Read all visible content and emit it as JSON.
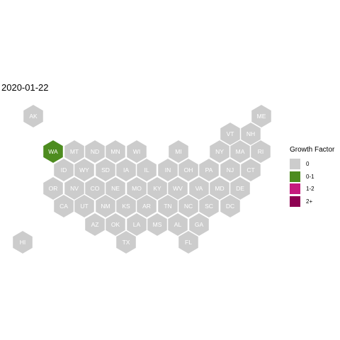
{
  "title": "2020-01-22",
  "colors": {
    "none": "#cccccc",
    "g01": "#4d8c1f",
    "g12": "#c51b7d",
    "g2plus": "#8e0152",
    "stroke": "#ffffff"
  },
  "legend": {
    "title": "Growth Factor",
    "items": [
      {
        "label": "0",
        "color": "#cccccc"
      },
      {
        "label": "0-1",
        "color": "#4d8c1f"
      },
      {
        "label": "1-2",
        "color": "#c51b7d"
      },
      {
        "label": "2+",
        "color": "#8e0152"
      }
    ]
  },
  "states": [
    {
      "abbr": "AK",
      "category": "0"
    },
    {
      "abbr": "ME",
      "category": "0"
    },
    {
      "abbr": "VT",
      "category": "0"
    },
    {
      "abbr": "NH",
      "category": "0"
    },
    {
      "abbr": "WA",
      "category": "0-1"
    },
    {
      "abbr": "MT",
      "category": "0"
    },
    {
      "abbr": "ND",
      "category": "0"
    },
    {
      "abbr": "MN",
      "category": "0"
    },
    {
      "abbr": "WI",
      "category": "0"
    },
    {
      "abbr": "MI",
      "category": "0"
    },
    {
      "abbr": "NY",
      "category": "0"
    },
    {
      "abbr": "MA",
      "category": "0"
    },
    {
      "abbr": "RI",
      "category": "0"
    },
    {
      "abbr": "ID",
      "category": "0"
    },
    {
      "abbr": "WY",
      "category": "0"
    },
    {
      "abbr": "SD",
      "category": "0"
    },
    {
      "abbr": "IA",
      "category": "0"
    },
    {
      "abbr": "IL",
      "category": "0"
    },
    {
      "abbr": "IN",
      "category": "0"
    },
    {
      "abbr": "OH",
      "category": "0"
    },
    {
      "abbr": "PA",
      "category": "0"
    },
    {
      "abbr": "NJ",
      "category": "0"
    },
    {
      "abbr": "CT",
      "category": "0"
    },
    {
      "abbr": "OR",
      "category": "0"
    },
    {
      "abbr": "NV",
      "category": "0"
    },
    {
      "abbr": "CO",
      "category": "0"
    },
    {
      "abbr": "NE",
      "category": "0"
    },
    {
      "abbr": "MO",
      "category": "0"
    },
    {
      "abbr": "KY",
      "category": "0"
    },
    {
      "abbr": "WV",
      "category": "0"
    },
    {
      "abbr": "VA",
      "category": "0"
    },
    {
      "abbr": "MD",
      "category": "0"
    },
    {
      "abbr": "DE",
      "category": "0"
    },
    {
      "abbr": "CA",
      "category": "0"
    },
    {
      "abbr": "UT",
      "category": "0"
    },
    {
      "abbr": "NM",
      "category": "0"
    },
    {
      "abbr": "KS",
      "category": "0"
    },
    {
      "abbr": "AR",
      "category": "0"
    },
    {
      "abbr": "TN",
      "category": "0"
    },
    {
      "abbr": "NC",
      "category": "0"
    },
    {
      "abbr": "SC",
      "category": "0"
    },
    {
      "abbr": "DC",
      "category": "0"
    },
    {
      "abbr": "AZ",
      "category": "0"
    },
    {
      "abbr": "OK",
      "category": "0"
    },
    {
      "abbr": "LA",
      "category": "0"
    },
    {
      "abbr": "MS",
      "category": "0"
    },
    {
      "abbr": "AL",
      "category": "0"
    },
    {
      "abbr": "GA",
      "category": "0"
    },
    {
      "abbr": "HI",
      "category": "0"
    },
    {
      "abbr": "TX",
      "category": "0"
    },
    {
      "abbr": "FL",
      "category": "0"
    }
  ]
}
